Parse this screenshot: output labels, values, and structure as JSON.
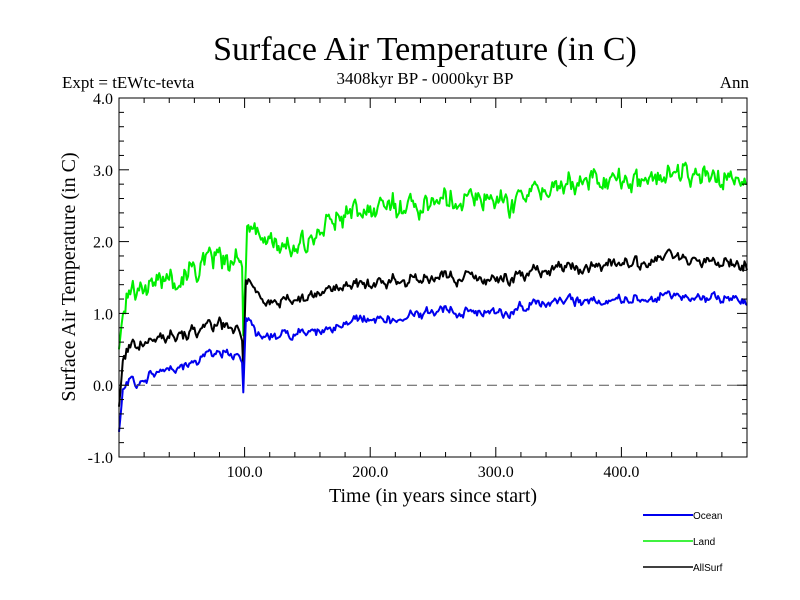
{
  "chart_data": {
    "type": "line",
    "title": "Surface Air Temperature (in C)",
    "subtitle": "3408kyr BP - 0000kyr BP",
    "left_label": "Expt = tEWtc-tevta",
    "right_label": "Ann",
    "xlabel": "Time (in years since start)",
    "ylabel": "Surface Air Temperature (in C)",
    "xlim": [
      0,
      500
    ],
    "ylim": [
      -1.0,
      4.0
    ],
    "x_ticks": [
      100,
      200,
      300,
      400
    ],
    "x_tick_labels": [
      "100.0",
      "200.0",
      "300.0",
      "400.0"
    ],
    "y_ticks": [
      -1.0,
      0.0,
      1.0,
      2.0,
      3.0,
      4.0
    ],
    "y_tick_labels": [
      "-1.0",
      "0.0",
      "1.0",
      "2.0",
      "3.0",
      "4.0"
    ],
    "reference_line": {
      "y": 0.0,
      "style": "dashed"
    },
    "grid": false,
    "legend_position": "bottom-right-outside",
    "series": [
      {
        "name": "Ocean",
        "color": "#0000ee",
        "anchors": [
          [
            0,
            -0.65
          ],
          [
            3,
            -0.1
          ],
          [
            8,
            0.1
          ],
          [
            15,
            0.0
          ],
          [
            25,
            0.15
          ],
          [
            40,
            0.25
          ],
          [
            55,
            0.3
          ],
          [
            70,
            0.4
          ],
          [
            85,
            0.45
          ],
          [
            98,
            0.35
          ],
          [
            99,
            -0.1
          ],
          [
            101,
            1.0
          ],
          [
            110,
            0.7
          ],
          [
            125,
            0.65
          ],
          [
            140,
            0.75
          ],
          [
            160,
            0.75
          ],
          [
            180,
            0.85
          ],
          [
            200,
            0.95
          ],
          [
            220,
            0.9
          ],
          [
            240,
            1.0
          ],
          [
            260,
            1.05
          ],
          [
            280,
            1.0
          ],
          [
            300,
            1.05
          ],
          [
            310,
            0.95
          ],
          [
            320,
            1.1
          ],
          [
            340,
            1.15
          ],
          [
            360,
            1.2
          ],
          [
            380,
            1.15
          ],
          [
            400,
            1.2
          ],
          [
            420,
            1.2
          ],
          [
            435,
            1.3
          ],
          [
            450,
            1.2
          ],
          [
            470,
            1.2
          ],
          [
            500,
            1.2
          ]
        ],
        "noise": 0.12
      },
      {
        "name": "Land",
        "color": "#00ee00",
        "anchors": [
          [
            0,
            0.5
          ],
          [
            3,
            1.0
          ],
          [
            8,
            1.3
          ],
          [
            20,
            1.4
          ],
          [
            40,
            1.5
          ],
          [
            60,
            1.6
          ],
          [
            80,
            1.75
          ],
          [
            98,
            1.7
          ],
          [
            99,
            0.7
          ],
          [
            102,
            2.3
          ],
          [
            115,
            2.05
          ],
          [
            130,
            1.9
          ],
          [
            150,
            2.0
          ],
          [
            170,
            2.3
          ],
          [
            190,
            2.4
          ],
          [
            210,
            2.5
          ],
          [
            230,
            2.5
          ],
          [
            250,
            2.55
          ],
          [
            270,
            2.6
          ],
          [
            290,
            2.6
          ],
          [
            310,
            2.55
          ],
          [
            330,
            2.7
          ],
          [
            350,
            2.75
          ],
          [
            370,
            2.85
          ],
          [
            390,
            2.85
          ],
          [
            410,
            2.85
          ],
          [
            430,
            3.0
          ],
          [
            450,
            2.95
          ],
          [
            470,
            2.9
          ],
          [
            500,
            2.85
          ]
        ],
        "noise": 0.28
      },
      {
        "name": "AllSurf",
        "color": "#000000",
        "anchors": [
          [
            0,
            -0.3
          ],
          [
            3,
            0.3
          ],
          [
            8,
            0.55
          ],
          [
            20,
            0.6
          ],
          [
            40,
            0.7
          ],
          [
            60,
            0.75
          ],
          [
            80,
            0.85
          ],
          [
            98,
            0.7
          ],
          [
            99,
            0.2
          ],
          [
            101,
            1.5
          ],
          [
            115,
            1.2
          ],
          [
            130,
            1.15
          ],
          [
            150,
            1.2
          ],
          [
            170,
            1.35
          ],
          [
            190,
            1.4
          ],
          [
            210,
            1.45
          ],
          [
            230,
            1.45
          ],
          [
            250,
            1.5
          ],
          [
            270,
            1.5
          ],
          [
            290,
            1.5
          ],
          [
            310,
            1.5
          ],
          [
            320,
            1.55
          ],
          [
            340,
            1.6
          ],
          [
            360,
            1.65
          ],
          [
            380,
            1.65
          ],
          [
            400,
            1.7
          ],
          [
            420,
            1.7
          ],
          [
            435,
            1.85
          ],
          [
            450,
            1.75
          ],
          [
            470,
            1.7
          ],
          [
            500,
            1.7
          ]
        ],
        "noise": 0.15
      }
    ]
  }
}
